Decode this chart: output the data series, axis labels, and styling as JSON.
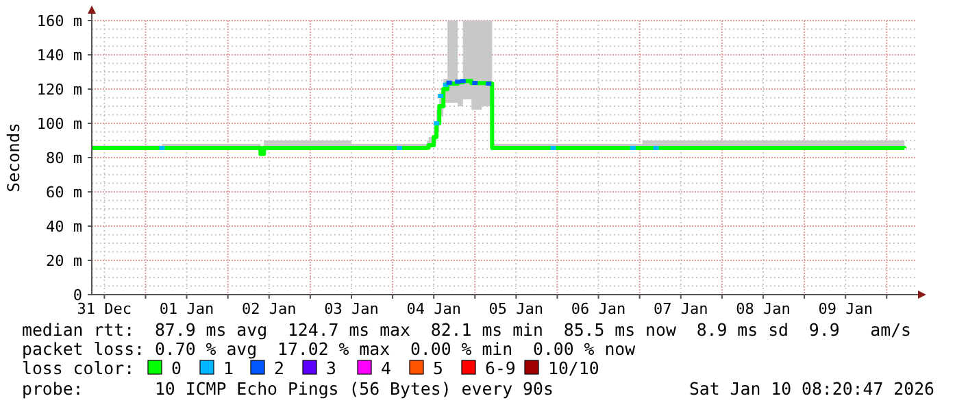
{
  "chart_data": {
    "type": "line",
    "ylabel": "Seconds",
    "legend_title": "loss color:",
    "legend": "bottom",
    "grid": true,
    "xlim": [
      "2025-12-31T08:20",
      "2026-01-10T08:20"
    ],
    "xticks": [
      {
        "value": "2025-12-31T12:00",
        "label": "31 Dec"
      },
      {
        "value": "2026-01-01T00:00",
        "label": null
      },
      {
        "value": "2026-01-01T12:00",
        "label": "01 Jan"
      },
      {
        "value": "2026-01-02T00:00",
        "label": null
      },
      {
        "value": "2026-01-02T12:00",
        "label": "02 Jan"
      },
      {
        "value": "2026-01-03T00:00",
        "label": null
      },
      {
        "value": "2026-01-03T12:00",
        "label": "03 Jan"
      },
      {
        "value": "2026-01-04T00:00",
        "label": null
      },
      {
        "value": "2026-01-04T12:00",
        "label": "04 Jan"
      },
      {
        "value": "2026-01-05T00:00",
        "label": null
      },
      {
        "value": "2026-01-05T12:00",
        "label": "05 Jan"
      },
      {
        "value": "2026-01-06T00:00",
        "label": null
      },
      {
        "value": "2026-01-06T12:00",
        "label": "06 Jan"
      },
      {
        "value": "2026-01-07T00:00",
        "label": null
      },
      {
        "value": "2026-01-07T12:00",
        "label": "07 Jan"
      },
      {
        "value": "2026-01-08T00:00",
        "label": null
      },
      {
        "value": "2026-01-08T12:00",
        "label": "08 Jan"
      },
      {
        "value": "2026-01-09T00:00",
        "label": null
      },
      {
        "value": "2026-01-09T12:00",
        "label": "09 Jan"
      },
      {
        "value": "2026-01-10T00:00",
        "label": null
      }
    ],
    "ylim": [
      0,
      160
    ],
    "yticks": [
      0,
      {
        "value": 20,
        "label": "20 m"
      },
      {
        "value": 40,
        "label": "40 m"
      },
      {
        "value": 60,
        "label": "60 m"
      },
      {
        "value": 80,
        "label": "80 m"
      },
      {
        "value": 100,
        "label": "100 m"
      },
      {
        "value": 120,
        "label": "120 m"
      },
      {
        "value": 140,
        "label": "140 m"
      },
      {
        "value": 160,
        "label": "160 m"
      }
    ],
    "series": [
      {
        "name": "0",
        "color": "#00ff00",
        "x": [
          "2025-12-31T08:20",
          "2026-01-01T04:48",
          "2026-01-02T09:00",
          "2026-01-02T09:30",
          "2026-01-02T10:30",
          "2026-01-03T12:00",
          "2026-01-04T02:00",
          "2026-01-04T10:00",
          "2026-01-04T10:30",
          "2026-01-04T11:30",
          "2026-01-04T12:00",
          "2026-01-04T12:48",
          "2026-01-04T13:36",
          "2026-01-04T14:48",
          "2026-01-04T16:00",
          "2026-01-04T19:00",
          "2026-01-04T20:30",
          "2026-01-04T23:00",
          "2026-01-05T02:00",
          "2026-01-05T04:30",
          "2026-01-05T05:00",
          "2026-01-05T22:48",
          "2026-01-07T00:48",
          "2026-01-10T05:12"
        ],
        "values": [
          85.6,
          85.6,
          85.6,
          82.1,
          85.6,
          85.6,
          85.6,
          85.8,
          87.2,
          87.2,
          92,
          100,
          110,
          120,
          123.2,
          124,
          124.7,
          123.5,
          123.5,
          123.2,
          85.6,
          85.6,
          85.6,
          85.5
        ],
        "lower": [
          85,
          85,
          85,
          82,
          85,
          85,
          85,
          85,
          86,
          87,
          89,
          95,
          104,
          112,
          112,
          110,
          114,
          108,
          110,
          112,
          85,
          85,
          85,
          85
        ],
        "upper": [
          87,
          88,
          88,
          87,
          90,
          88,
          88,
          90,
          92,
          93,
          98,
          108,
          118,
          126,
          160,
          125,
          160,
          160,
          160,
          160,
          88,
          88,
          90,
          88
        ]
      },
      {
        "name": "1",
        "type": "scatter",
        "color": "#00b8ff",
        "marker": "square",
        "x": [
          "2026-01-01T04:48",
          "2026-01-04T02:00",
          "2026-01-04T12:48",
          "2026-01-04T14:00",
          "2026-01-04T15:30",
          "2026-01-05T22:48",
          "2026-01-06T22:00",
          "2026-01-07T04:48"
        ],
        "values": [
          85.6,
          85.6,
          100,
          116,
          122.5,
          85.6,
          85.6,
          85.6
        ]
      },
      {
        "name": "2",
        "type": "scatter",
        "color": "#0059ff",
        "marker": "square",
        "x": [
          "2026-01-04T16:30",
          "2026-01-04T19:00",
          "2026-01-04T20:30",
          "2026-01-05T00:00",
          "2026-01-05T04:00"
        ],
        "values": [
          123.7,
          124.3,
          124.7,
          123.6,
          123.2
        ]
      },
      {
        "name": "3",
        "type": "scatter",
        "color": "#5e00ff"
      },
      {
        "name": "4",
        "type": "scatter",
        "color": "#ff00ff"
      },
      {
        "name": "5",
        "type": "scatter",
        "color": "#ff5500"
      },
      {
        "name": "6-9",
        "type": "scatter",
        "color": "#ff0000"
      },
      {
        "name": "10/10",
        "type": "scatter",
        "color": "#a10000"
      }
    ],
    "annotations": [
      "median rtt:  87.9 ms avg  124.7 ms max  82.1 ms min  85.5 ms now  8.9 ms sd  9.9   am/s",
      "packet loss: 0.70 % avg  17.02 % max  0.00 % min  0.00 % now",
      "probe:       10 ICMP Echo Pings (56 Bytes) every 90s",
      "Sat Jan 10 08:20:47 2026"
    ]
  }
}
